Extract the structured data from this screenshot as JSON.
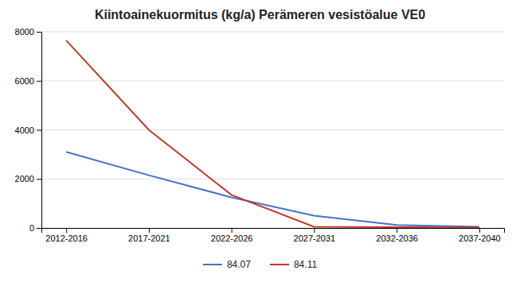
{
  "chart_data": {
    "type": "line",
    "title": "Kiintoainekuormitus (kg/a) Perämeren vesistöalue VE0",
    "categories": [
      "2012-2016",
      "2017-2021",
      "2022-2026",
      "2027-2031",
      "2032-2036",
      "2037-2040"
    ],
    "series": [
      {
        "name": "84.07",
        "color": "#4472C4",
        "values": [
          3100,
          2150,
          1250,
          500,
          120,
          50
        ]
      },
      {
        "name": "84.11",
        "color": "#C0392B",
        "values": [
          7650,
          4000,
          1350,
          50,
          30,
          20
        ]
      }
    ],
    "ylim": [
      0,
      8000
    ],
    "yticks": [
      0,
      2000,
      4000,
      6000,
      8000
    ],
    "grid": true,
    "legend": "bottom"
  }
}
